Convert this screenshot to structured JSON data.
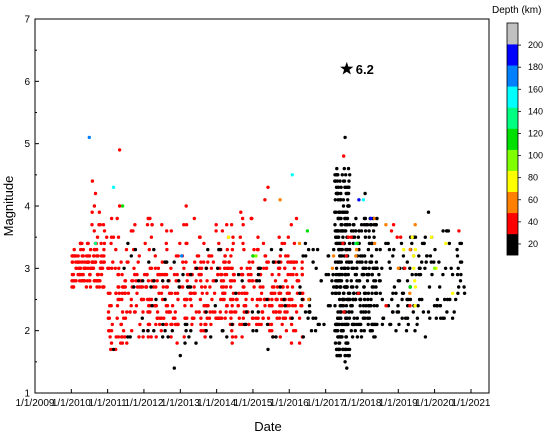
{
  "chart_data": {
    "type": "scatter",
    "xlabel": "Date",
    "ylabel": "Magnitude",
    "xlim": [
      "2009-01-01",
      "2021-07-01"
    ],
    "ylim": [
      1,
      7
    ],
    "x_ticks": [
      "2009-01-01",
      "2010-01-01",
      "2011-01-01",
      "2012-01-01",
      "2013-01-01",
      "2014-01-01",
      "2015-01-01",
      "2016-01-01",
      "2017-01-01",
      "2018-01-01",
      "2019-01-01",
      "2020-01-01",
      "2021-01-01"
    ],
    "x_tick_labels": [
      "1/1/2009",
      "1/1/2010",
      "1/1/2011",
      "1/1/2012",
      "1/1/2013",
      "1/1/2014",
      "1/1/2015",
      "1/1/2016",
      "1/1/2017",
      "1/1/2018",
      "1/1/2019",
      "1/1/2020",
      "1/1/2021"
    ],
    "y_ticks": [
      1,
      2,
      3,
      4,
      5,
      6,
      7
    ],
    "grid": false,
    "colorbar": {
      "title": "Depth (km)",
      "ticks": [
        20,
        40,
        60,
        80,
        100,
        120,
        140,
        160,
        180,
        200
      ],
      "bins": [
        {
          "from": 10,
          "to": 20,
          "color": "#000000"
        },
        {
          "from": 20,
          "to": 40,
          "color": "#ff0000"
        },
        {
          "from": 40,
          "to": 60,
          "color": "#ff8000"
        },
        {
          "from": 60,
          "to": 80,
          "color": "#ffff00"
        },
        {
          "from": 80,
          "to": 100,
          "color": "#80ff00"
        },
        {
          "from": 100,
          "to": 120,
          "color": "#00e000"
        },
        {
          "from": 120,
          "to": 140,
          "color": "#00ff80"
        },
        {
          "from": 140,
          "to": 160,
          "color": "#00ffff"
        },
        {
          "from": 160,
          "to": 180,
          "color": "#0080ff"
        },
        {
          "from": 180,
          "to": 200,
          "color": "#0000ff"
        },
        {
          "from": 200,
          "to": 220,
          "color": "#c0c0c0"
        }
      ]
    },
    "annotation": {
      "date": "2017-08-01",
      "magnitude": 6.2,
      "label": "6.2",
      "marker": "star"
    },
    "point_groups": [
      {
        "from": "2010-01-01",
        "to": "2010-12-01",
        "color": "#ff0000",
        "seed": 11,
        "count": 130,
        "mag": [
          2.7,
          3.4
        ]
      },
      {
        "from": "2010-06-01",
        "to": "2011-05-01",
        "color": "#ff0000",
        "seed": 12,
        "count": 20,
        "mag": [
          3.3,
          4.0
        ]
      },
      {
        "from": "2011-01-01",
        "to": "2011-06-01",
        "color": "#ff0000",
        "seed": 13,
        "count": 45,
        "mag": [
          1.7,
          3.2
        ]
      },
      {
        "from": "2011-06-01",
        "to": "2016-06-01",
        "color": "#ff0000",
        "seed": 14,
        "count": 430,
        "mag": [
          2.1,
          3.2
        ]
      },
      {
        "from": "2011-06-01",
        "to": "2016-06-01",
        "color": "#ff0000",
        "seed": 15,
        "count": 50,
        "mag": [
          1.8,
          2.2
        ]
      },
      {
        "from": "2011-06-01",
        "to": "2016-06-01",
        "color": "#ff0000",
        "seed": 16,
        "count": 60,
        "mag": [
          3.2,
          3.8
        ]
      },
      {
        "from": "2011-06-01",
        "to": "2016-06-01",
        "color": "#000000",
        "seed": 17,
        "count": 90,
        "mag": [
          1.8,
          3.4
        ]
      },
      {
        "from": "2016-06-01",
        "to": "2017-06-01",
        "color": "#000000",
        "seed": 18,
        "count": 40,
        "mag": [
          2.0,
          3.4
        ]
      },
      {
        "from": "2017-04-01",
        "to": "2017-09-01",
        "color": "#000000",
        "seed": 19,
        "count": 260,
        "mag": [
          1.6,
          4.6
        ]
      },
      {
        "from": "2017-09-01",
        "to": "2018-06-01",
        "color": "#000000",
        "seed": 20,
        "count": 160,
        "mag": [
          1.9,
          3.8
        ]
      },
      {
        "from": "2018-06-01",
        "to": "2020-11-01",
        "color": "#000000",
        "seed": 21,
        "count": 140,
        "mag": [
          2.0,
          3.6
        ]
      },
      {
        "from": "2017-06-01",
        "to": "2019-06-01",
        "color": "#ff0000",
        "seed": 22,
        "count": 12,
        "mag": [
          2.2,
          3.8
        ]
      },
      {
        "from": "2019-01-01",
        "to": "2020-11-01",
        "color": "#ffff00",
        "seed": 23,
        "count": 10,
        "mag": [
          2.4,
          3.6
        ]
      },
      {
        "from": "2016-01-01",
        "to": "2020-11-01",
        "color": "#ff8000",
        "seed": 24,
        "count": 12,
        "mag": [
          2.4,
          3.8
        ]
      }
    ],
    "points": [
      {
        "x": "2010-07-01",
        "y": 5.1,
        "color": "#0080ff"
      },
      {
        "x": "2011-05-01",
        "y": 4.9,
        "color": "#ff0000"
      },
      {
        "x": "2011-03-01",
        "y": 4.3,
        "color": "#00ffff"
      },
      {
        "x": "2011-06-01",
        "y": 4.0,
        "color": "#00e000"
      },
      {
        "x": "2010-09-01",
        "y": 3.4,
        "color": "#00ff80"
      },
      {
        "x": "2010-08-01",
        "y": 4.4,
        "color": "#ff0000"
      },
      {
        "x": "2010-09-01",
        "y": 4.2,
        "color": "#ff0000"
      },
      {
        "x": "2011-05-01",
        "y": 4.0,
        "color": "#ff0000"
      },
      {
        "x": "2012-03-01",
        "y": 3.8,
        "color": "#ff0000"
      },
      {
        "x": "2013-03-01",
        "y": 4.0,
        "color": "#ff0000"
      },
      {
        "x": "2013-01-15",
        "y": 3.2,
        "color": "#0080ff"
      },
      {
        "x": "2013-01-01",
        "y": 1.6,
        "color": "#000000"
      },
      {
        "x": "2012-11-01",
        "y": 1.4,
        "color": "#000000"
      },
      {
        "x": "2011-02-01",
        "y": 1.7,
        "color": "#ff0000"
      },
      {
        "x": "2011-03-01",
        "y": 1.7,
        "color": "#000000"
      },
      {
        "x": "2014-09-01",
        "y": 3.9,
        "color": "#ff0000"
      },
      {
        "x": "2015-06-01",
        "y": 4.3,
        "color": "#ff0000"
      },
      {
        "x": "2015-05-01",
        "y": 4.1,
        "color": "#ff0000"
      },
      {
        "x": "2015-10-01",
        "y": 4.1,
        "color": "#ff8000"
      },
      {
        "x": "2016-02-01",
        "y": 4.5,
        "color": "#00ffff"
      },
      {
        "x": "2016-07-01",
        "y": 3.6,
        "color": "#00e000"
      },
      {
        "x": "2014-05-01",
        "y": 3.5,
        "color": "#ffff00"
      },
      {
        "x": "2015-01-01",
        "y": 3.2,
        "color": "#00e000"
      },
      {
        "x": "2015-02-01",
        "y": 3.2,
        "color": "#80ff00"
      },
      {
        "x": "2015-02-15",
        "y": 3.3,
        "color": "#ff0000"
      },
      {
        "x": "2015-06-01",
        "y": 1.7,
        "color": "#000000"
      },
      {
        "x": "2017-07-15",
        "y": 5.1,
        "color": "#000000"
      },
      {
        "x": "2017-07-01",
        "y": 4.8,
        "color": "#ff0000"
      },
      {
        "x": "2017-07-15",
        "y": 1.5,
        "color": "#000000"
      },
      {
        "x": "2017-08-01",
        "y": 1.4,
        "color": "#000000"
      },
      {
        "x": "2018-02-01",
        "y": 4.2,
        "color": "#000000"
      },
      {
        "x": "2017-12-01",
        "y": 4.1,
        "color": "#0000ff"
      },
      {
        "x": "2018-01-15",
        "y": 4.1,
        "color": "#00ffff"
      },
      {
        "x": "2018-04-01",
        "y": 3.8,
        "color": "#0000ff"
      },
      {
        "x": "2018-06-01",
        "y": 3.8,
        "color": "#000000"
      },
      {
        "x": "2017-11-01",
        "y": 3.4,
        "color": "#00ff80"
      },
      {
        "x": "2017-11-15",
        "y": 3.4,
        "color": "#00e000"
      },
      {
        "x": "2019-11-01",
        "y": 3.9,
        "color": "#000000"
      },
      {
        "x": "2020-05-01",
        "y": 3.6,
        "color": "#000000"
      },
      {
        "x": "2020-09-01",
        "y": 3.6,
        "color": "#ff0000"
      },
      {
        "x": "2019-12-01",
        "y": 3.5,
        "color": "#ffff00"
      },
      {
        "x": "2020-01-01",
        "y": 3.0,
        "color": "#80ff00"
      },
      {
        "x": "2019-05-01",
        "y": 2.7,
        "color": "#00e000"
      },
      {
        "x": "2018-09-01",
        "y": 2.4,
        "color": "#ff0000"
      },
      {
        "x": "2019-10-01",
        "y": 1.9,
        "color": "#000000"
      },
      {
        "x": "2018-04-01",
        "y": 2.0,
        "color": "#000000"
      },
      {
        "x": "2020-07-01",
        "y": 2.6,
        "color": "#ffff00"
      },
      {
        "x": "2019-01-01",
        "y": 3.0,
        "color": "#ff8000"
      }
    ]
  }
}
